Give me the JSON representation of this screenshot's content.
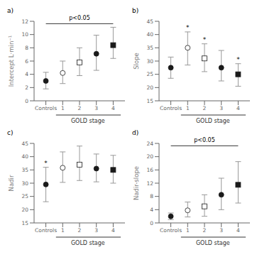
{
  "chart_data": [
    {
      "type": "scatter",
      "title": "a)",
      "ylabel": "Intercept L·min⁻¹",
      "xlabel": "GOLD stage",
      "categories": [
        "Controls",
        "1",
        "2",
        "3",
        "4"
      ],
      "values": [
        3.0,
        4.2,
        5.8,
        7.1,
        8.4
      ],
      "error_bars": {
        "lo": [
          1.2,
          1.6,
          2.0,
          2.5,
          2.0
        ],
        "hi": [
          1.3,
          1.8,
          2.2,
          2.8,
          2.7
        ],
        "color": "#999999"
      },
      "markers": [
        "circle",
        "circle",
        "square",
        "circle",
        "square"
      ],
      "colors": [
        "#1a1a1a",
        "#ffffff",
        "#ffffff",
        "#1a1a1a",
        "#1a1a1a"
      ],
      "color": "#1a1a1a",
      "significance": {
        "label": "p<0.05",
        "from": "Controls",
        "to": "4"
      },
      "ylim": [
        0,
        12
      ],
      "yticks": [
        0,
        2,
        4,
        6,
        8,
        10,
        12
      ]
    },
    {
      "type": "scatter",
      "title": "b)",
      "ylabel": "Slope",
      "xlabel": "GOLD stage",
      "categories": [
        "Controls",
        "1",
        "2",
        "3",
        "4"
      ],
      "values": [
        27.5,
        35.0,
        31.0,
        27.5,
        25.0
      ],
      "error_bars": {
        "lo": [
          4.0,
          6.5,
          5.0,
          5.0,
          4.5
        ],
        "hi": [
          4.0,
          6.0,
          5.5,
          6.5,
          4.0
        ],
        "color": "#999999"
      },
      "markers": [
        "circle",
        "circle",
        "square",
        "circle",
        "square"
      ],
      "colors": [
        "#1a1a1a",
        "#ffffff",
        "#ffffff",
        "#1a1a1a",
        "#1a1a1a"
      ],
      "color": "#1a1a1a",
      "annotations": [
        null,
        "*",
        "*",
        null,
        "*"
      ],
      "ylim": [
        15,
        45
      ],
      "yticks": [
        15,
        20,
        25,
        30,
        35,
        40,
        45
      ]
    },
    {
      "type": "scatter",
      "title": "c)",
      "ylabel": "Nadir",
      "xlabel": "GOLD stage",
      "categories": [
        "Controls",
        "1",
        "2",
        "3",
        "4"
      ],
      "values": [
        29.5,
        35.8,
        37.0,
        35.5,
        35.0
      ],
      "error_bars": {
        "lo": [
          6.5,
          5.5,
          6.0,
          5.0,
          5.0
        ],
        "hi": [
          6.5,
          6.0,
          7.0,
          5.5,
          5.5
        ],
        "color": "#999999"
      },
      "markers": [
        "circle",
        "circle",
        "square",
        "circle",
        "square"
      ],
      "colors": [
        "#1a1a1a",
        "#ffffff",
        "#ffffff",
        "#1a1a1a",
        "#1a1a1a"
      ],
      "color": "#1a1a1a",
      "annotations": [
        "*",
        null,
        null,
        null,
        null
      ],
      "ylim": [
        15,
        45
      ],
      "yticks": [
        15,
        20,
        25,
        30,
        35,
        40,
        45
      ]
    },
    {
      "type": "scatter",
      "title": "d)",
      "ylabel": "Nadir-slope",
      "xlabel": "GOLD stage",
      "categories": [
        "Controls",
        "1",
        "2",
        "3",
        "4"
      ],
      "values": [
        2.0,
        3.8,
        5.0,
        8.5,
        11.5
      ],
      "error_bars": {
        "lo": [
          1.0,
          2.0,
          3.0,
          4.5,
          5.5
        ],
        "hi": [
          1.0,
          2.5,
          3.5,
          5.0,
          7.0
        ],
        "color": "#999999"
      },
      "markers": [
        "circle",
        "circle",
        "square",
        "circle",
        "square"
      ],
      "colors": [
        "#1a1a1a",
        "#ffffff",
        "#ffffff",
        "#1a1a1a",
        "#1a1a1a"
      ],
      "color": "#1a1a1a",
      "significance": {
        "label": "p<0.05",
        "from": "Controls",
        "to": "4"
      },
      "ylim": [
        0,
        24
      ],
      "yticks": [
        0,
        4,
        8,
        12,
        16,
        20,
        24
      ]
    }
  ]
}
